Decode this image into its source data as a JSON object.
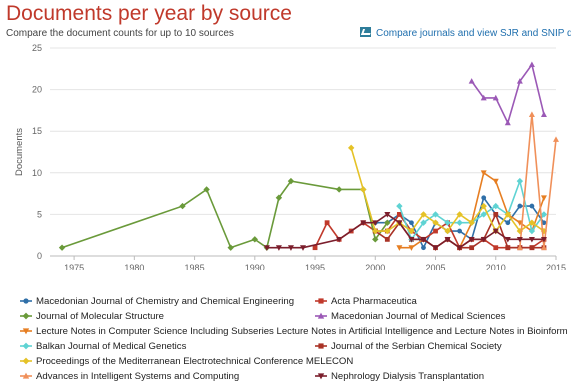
{
  "header": {
    "title": "Documents per year by source",
    "subtitle": "Compare the document counts for up to 10 sources",
    "compare_link": "Compare journals and view SJR and SNIP data"
  },
  "chart_data": {
    "type": "line",
    "title": "Documents per year by source",
    "xlabel": "",
    "ylabel": "Documents",
    "xlim": [
      1973,
      2015
    ],
    "ylim": [
      0,
      25
    ],
    "x_ticks": [
      1975,
      1980,
      1985,
      1990,
      1995,
      2000,
      2005,
      2010,
      2015
    ],
    "y_ticks": [
      0,
      5,
      10,
      15,
      20,
      25
    ],
    "grid": true,
    "legend_position": "bottom",
    "series": [
      {
        "name": "Macedonian Journal of Chemistry and Chemical Engineering",
        "color": "#2f6fa8",
        "marker": "circle",
        "points": [
          [
            2000,
            4
          ],
          [
            2001,
            4
          ],
          [
            2002,
            5
          ],
          [
            2003,
            4
          ],
          [
            2004,
            1
          ],
          [
            2005,
            4
          ],
          [
            2006,
            3
          ],
          [
            2007,
            3
          ],
          [
            2008,
            2
          ],
          [
            2009,
            7
          ],
          [
            2010,
            5
          ],
          [
            2011,
            4
          ],
          [
            2012,
            6
          ],
          [
            2013,
            6
          ],
          [
            2014,
            4
          ]
        ]
      },
      {
        "name": "Acta Pharmaceutica",
        "color": "#c0392b",
        "marker": "square",
        "points": [
          [
            1995,
            1
          ],
          [
            1996,
            4
          ],
          [
            1997,
            2
          ],
          [
            1998,
            3
          ],
          [
            1999,
            4
          ],
          [
            2000,
            3
          ],
          [
            2001,
            3
          ],
          [
            2002,
            5
          ],
          [
            2003,
            3
          ],
          [
            2004,
            2
          ],
          [
            2005,
            3
          ],
          [
            2006,
            4
          ],
          [
            2007,
            1
          ],
          [
            2008,
            2
          ],
          [
            2009,
            2
          ],
          [
            2010,
            1
          ],
          [
            2011,
            1
          ],
          [
            2012,
            1
          ],
          [
            2013,
            1
          ],
          [
            2014,
            2
          ]
        ]
      },
      {
        "name": "Journal of Molecular Structure",
        "color": "#6a9a3a",
        "marker": "diamond",
        "points": [
          [
            1974,
            1
          ],
          [
            1984,
            6
          ],
          [
            1986,
            8
          ],
          [
            1988,
            1
          ],
          [
            1990,
            2
          ],
          [
            1991,
            1
          ],
          [
            1992,
            7
          ],
          [
            1993,
            9
          ],
          [
            1997,
            8
          ],
          [
            1999,
            8
          ],
          [
            2000,
            2
          ],
          [
            2001,
            4
          ]
        ]
      },
      {
        "name": "Macedonian Journal of Medical Sciences",
        "color": "#9b59b6",
        "marker": "triangle",
        "points": [
          [
            2008,
            21
          ],
          [
            2009,
            19
          ],
          [
            2010,
            19
          ],
          [
            2011,
            16
          ],
          [
            2012,
            21
          ],
          [
            2013,
            23
          ],
          [
            2014,
            17
          ]
        ]
      },
      {
        "name": "Lecture Notes in Computer Science Including Subseries Lecture Notes in Artificial Intelligence and Lecture Notes in Bioinformatics",
        "color": "#e67e22",
        "marker": "triangle-down",
        "points": [
          [
            2002,
            1
          ],
          [
            2003,
            1
          ],
          [
            2004,
            2
          ],
          [
            2005,
            1
          ],
          [
            2006,
            2
          ],
          [
            2007,
            1
          ],
          [
            2008,
            4
          ],
          [
            2009,
            10
          ],
          [
            2010,
            9
          ],
          [
            2011,
            5
          ],
          [
            2012,
            4
          ],
          [
            2013,
            3
          ],
          [
            2014,
            7
          ]
        ]
      },
      {
        "name": "Journal of the Serbian Chemical Society",
        "color": "#a93226",
        "marker": "square",
        "points": [
          [
            2000,
            3
          ],
          [
            2001,
            2
          ],
          [
            2002,
            4
          ],
          [
            2003,
            2
          ],
          [
            2004,
            2
          ],
          [
            2005,
            1
          ],
          [
            2006,
            2
          ],
          [
            2007,
            1
          ],
          [
            2008,
            1
          ],
          [
            2009,
            2
          ],
          [
            2010,
            5
          ],
          [
            2011,
            1
          ],
          [
            2012,
            1
          ],
          [
            2013,
            1
          ],
          [
            2014,
            1
          ]
        ]
      },
      {
        "name": "Balkan Journal of Medical Genetics",
        "color": "#5fd3d3",
        "marker": "diamond",
        "points": [
          [
            2002,
            6
          ],
          [
            2003,
            2
          ],
          [
            2004,
            4
          ],
          [
            2005,
            5
          ],
          [
            2006,
            4
          ],
          [
            2007,
            4
          ],
          [
            2008,
            4
          ],
          [
            2009,
            5
          ],
          [
            2010,
            6
          ],
          [
            2011,
            5
          ],
          [
            2012,
            9
          ],
          [
            2013,
            3
          ],
          [
            2014,
            5
          ]
        ]
      },
      {
        "name": "Proceedings of the Mediterranean Electrotechnical Conference MELECON",
        "color": "#e5c227",
        "marker": "diamond",
        "points": [
          [
            1998,
            13
          ],
          [
            1999,
            8
          ],
          [
            2000,
            3
          ],
          [
            2001,
            3
          ],
          [
            2002,
            4
          ],
          [
            2003,
            3
          ],
          [
            2004,
            5
          ],
          [
            2005,
            4
          ],
          [
            2006,
            3
          ],
          [
            2007,
            5
          ],
          [
            2008,
            4
          ],
          [
            2009,
            6
          ],
          [
            2010,
            3
          ],
          [
            2011,
            5
          ],
          [
            2012,
            3
          ],
          [
            2013,
            4
          ],
          [
            2014,
            3
          ]
        ]
      },
      {
        "name": "Advances in Intelligent Systems and Computing",
        "color": "#f0905a",
        "marker": "triangle",
        "points": [
          [
            2012,
            1
          ],
          [
            2013,
            17
          ],
          [
            2014,
            1
          ],
          [
            2015,
            14
          ]
        ]
      },
      {
        "name": "Nephrology Dialysis Transplantation",
        "color": "#7b1e2c",
        "marker": "triangle-down",
        "points": [
          [
            1991,
            1
          ],
          [
            1992,
            1
          ],
          [
            1993,
            1
          ],
          [
            1994,
            1
          ],
          [
            1997,
            2
          ],
          [
            1999,
            4
          ],
          [
            2000,
            4
          ],
          [
            2001,
            5
          ],
          [
            2002,
            4
          ],
          [
            2003,
            2
          ],
          [
            2004,
            2
          ],
          [
            2005,
            1
          ],
          [
            2006,
            2
          ],
          [
            2007,
            1
          ],
          [
            2008,
            2
          ],
          [
            2009,
            2
          ],
          [
            2010,
            3
          ],
          [
            2011,
            2
          ],
          [
            2012,
            2
          ],
          [
            2013,
            2
          ],
          [
            2014,
            2
          ]
        ]
      }
    ]
  }
}
